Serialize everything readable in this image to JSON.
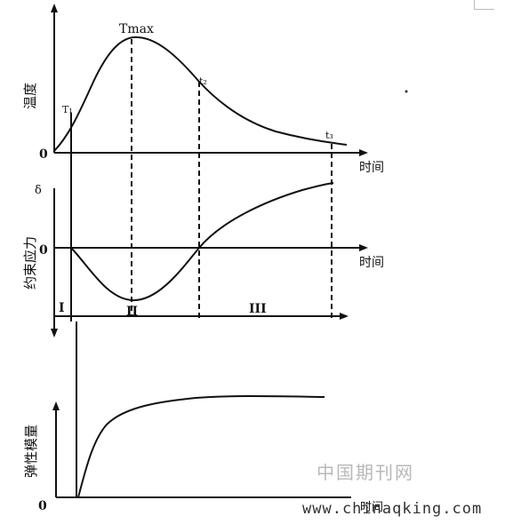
{
  "top_panel": {
    "y_axis_label": "温度",
    "x_axis_label": "时间",
    "origin_label": "0",
    "point_labels": [
      "T₁",
      "Tmax",
      "t₂",
      "t₃"
    ]
  },
  "middle_panel": {
    "y_axis_label": "约束应力",
    "x_axis_label": "时间",
    "zero_label": "0",
    "top_label": "δ",
    "stage_labels": [
      "I",
      "II",
      "III"
    ]
  },
  "bottom_panel": {
    "y_axis_label": "弹性模量",
    "x_axis_label": "时间",
    "origin_label": "0"
  },
  "watermark": {
    "chinese": "中国期刊网",
    "url": "www.chinaqking.com"
  }
}
